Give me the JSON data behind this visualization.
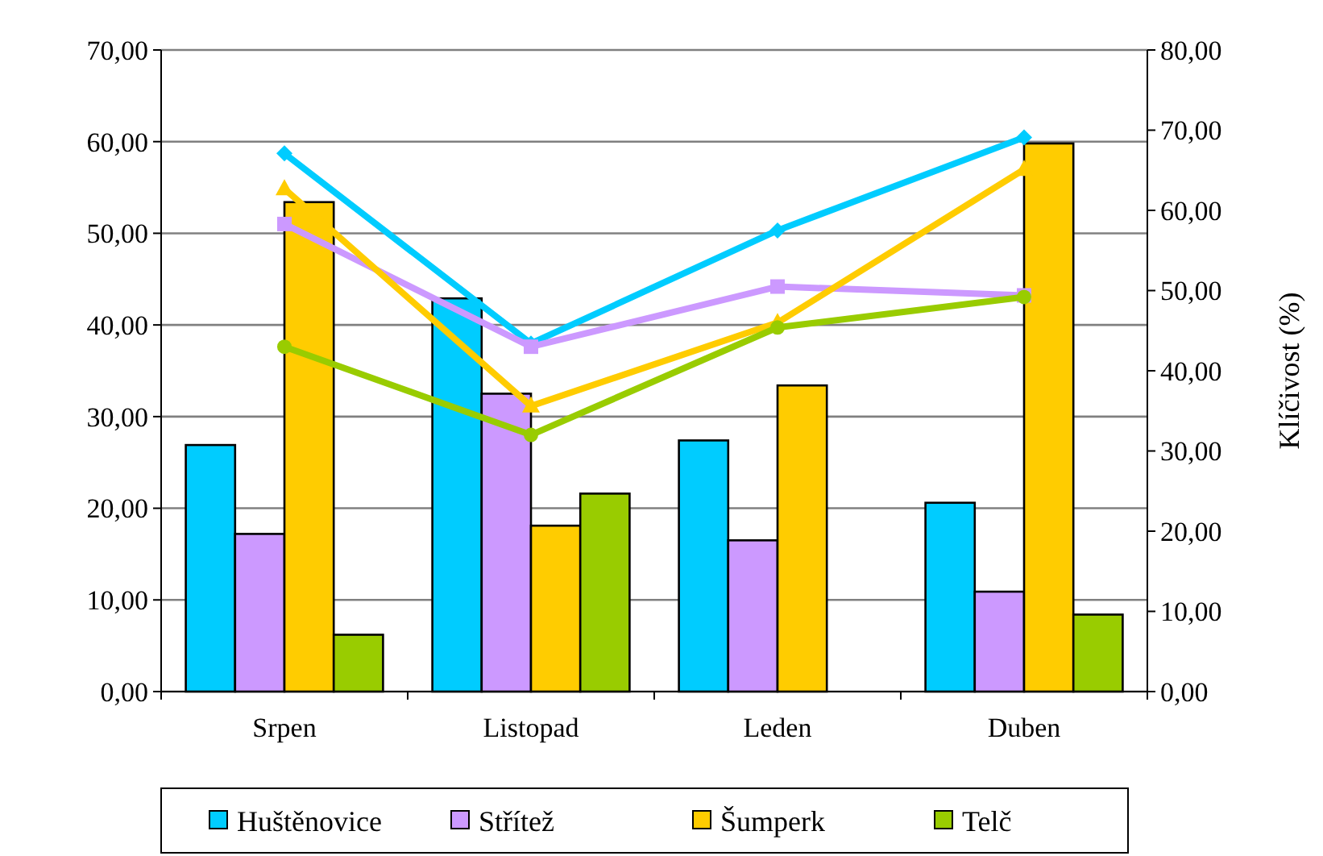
{
  "chart_data": {
    "type": "bar",
    "y2label": "Klíčivost (%)",
    "categories": [
      "Srpen",
      "Listopad",
      "Leden",
      "Duben"
    ],
    "series": [
      {
        "name": "Huštěnovice",
        "color": "#00ccff",
        "values": [
          26.9,
          42.9,
          27.4,
          20.6
        ]
      },
      {
        "name": "Střítež",
        "color": "#cc99ff",
        "values": [
          17.2,
          32.5,
          16.5,
          10.9
        ]
      },
      {
        "name": "Šumperk",
        "color": "#ffcc00",
        "values": [
          53.4,
          18.1,
          33.4,
          59.8
        ]
      },
      {
        "name": "Telč",
        "color": "#99cc00",
        "values": [
          6.2,
          21.6,
          null,
          8.4
        ]
      },
      {
        "type": "line",
        "axis": "y2",
        "color": "#00ccff",
        "marker": "diamond",
        "values": [
          67.1,
          43.4,
          57.5,
          69.1
        ]
      },
      {
        "type": "line",
        "axis": "y2",
        "color": "#cc99ff",
        "marker": "square",
        "values": [
          58.3,
          43.0,
          50.5,
          49.4
        ]
      },
      {
        "type": "line",
        "axis": "y2",
        "color": "#ffcc00",
        "marker": "triangle",
        "values": [
          62.7,
          35.6,
          46.0,
          65.1
        ]
      },
      {
        "type": "line",
        "axis": "y2",
        "color": "#99cc00",
        "marker": "circle",
        "values": [
          43.0,
          32.0,
          45.4,
          49.2
        ]
      }
    ],
    "ylim": [
      0,
      70
    ],
    "yticks": [
      {
        "value": 0,
        "label": "0,00"
      },
      {
        "value": 10,
        "label": "10,00"
      },
      {
        "value": 20,
        "label": "20,00"
      },
      {
        "value": 30,
        "label": "30,00"
      },
      {
        "value": 40,
        "label": "40,00"
      },
      {
        "value": 50,
        "label": "50,00"
      },
      {
        "value": 60,
        "label": "60,00"
      },
      {
        "value": 70,
        "label": "70,00"
      }
    ],
    "y2lim": [
      0,
      80
    ],
    "y2ticks": [
      {
        "value": 0,
        "label": "0,00"
      },
      {
        "value": 10,
        "label": "10,00"
      },
      {
        "value": 20,
        "label": "20,00"
      },
      {
        "value": 30,
        "label": "30,00"
      },
      {
        "value": 40,
        "label": "40,00"
      },
      {
        "value": 50,
        "label": "50,00"
      },
      {
        "value": 60,
        "label": "60,00"
      },
      {
        "value": 70,
        "label": "70,00"
      },
      {
        "value": 80,
        "label": "80,00"
      }
    ],
    "grid": "y",
    "legend": "bottom"
  }
}
